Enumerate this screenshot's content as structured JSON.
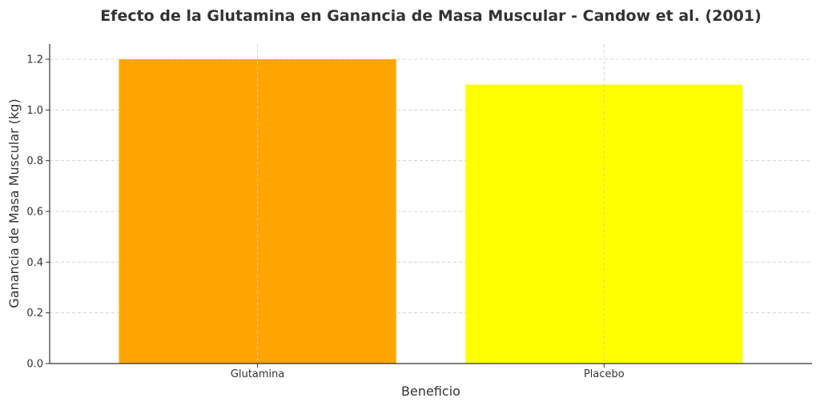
{
  "chart_data": {
    "type": "bar",
    "title": "Efecto de la Glutamina en Ganancia de Masa Muscular - Candow et al. (2001)",
    "xlabel": "Beneficio",
    "ylabel": "Ganancia de Masa Muscular (kg)",
    "categories": [
      "Glutamina",
      "Placebo"
    ],
    "values": [
      1.2,
      1.1
    ],
    "colors": [
      "#FFA500",
      "#FFFF00"
    ],
    "ylim": [
      0,
      1.26
    ],
    "yticks": [
      "0.0",
      "0.2",
      "0.4",
      "0.6",
      "0.8",
      "1.0",
      "1.2"
    ],
    "grid": true,
    "legend": "none"
  }
}
